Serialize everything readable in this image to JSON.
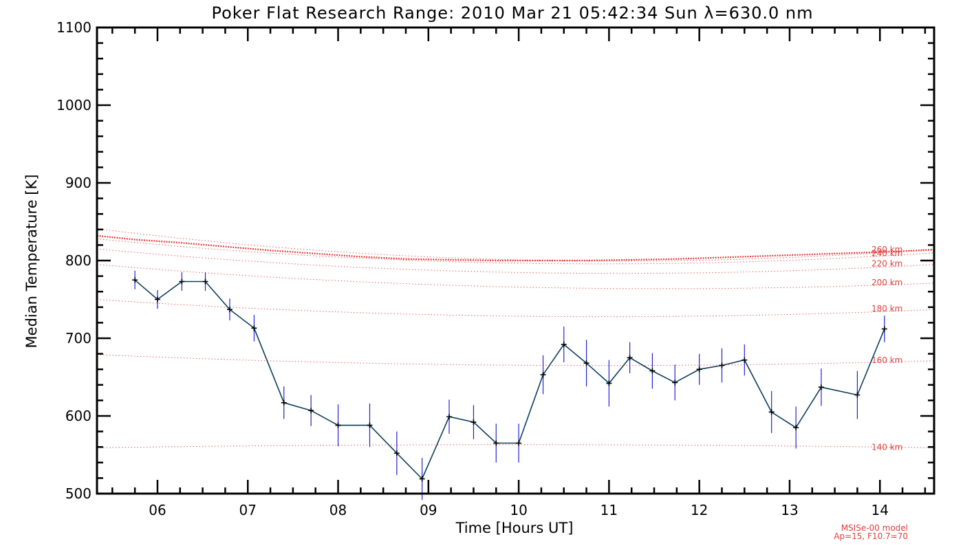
{
  "chart_data": {
    "type": "line",
    "title": "Poker Flat Research Range: 2010 Mar 21 05:42:34 Sun λ=630.0 nm",
    "xlabel": "Time [Hours UT]",
    "ylabel": "Median Temperature [K]",
    "xlim": [
      5.33,
      14.6
    ],
    "ylim": [
      500,
      1100
    ],
    "x_tick_labels": [
      "06",
      "07",
      "08",
      "09",
      "10",
      "11",
      "12",
      "13",
      "14"
    ],
    "y_tick_labels": [
      "500",
      "600",
      "700",
      "800",
      "900",
      "1000",
      "1100"
    ],
    "grid": false,
    "series": [
      {
        "kind": "measured",
        "color": "#0b3d5c",
        "error_color": "#1f1fd6",
        "x": [
          5.75,
          6.0,
          6.27,
          6.53,
          6.8,
          7.07,
          7.4,
          7.7,
          8.0,
          8.35,
          8.65,
          8.93,
          9.23,
          9.5,
          9.75,
          10.0,
          10.27,
          10.5,
          10.75,
          11.0,
          11.23,
          11.48,
          11.73,
          12.0,
          12.25,
          12.5,
          12.8,
          13.07,
          13.35,
          13.75,
          14.05
        ],
        "y": [
          775,
          750,
          773,
          773,
          737,
          713,
          617,
          607,
          588,
          588,
          552,
          519,
          599,
          592,
          565,
          565,
          653,
          692,
          668,
          642,
          675,
          658,
          643,
          660,
          665,
          672,
          605,
          585,
          637,
          627,
          712
        ],
        "err": [
          12,
          12,
          12,
          12,
          14,
          17,
          21,
          20,
          27,
          28,
          28,
          27,
          22,
          22,
          25,
          25,
          25,
          23,
          30,
          30,
          20,
          23,
          23,
          20,
          22,
          20,
          27,
          27,
          24,
          31,
          17
        ]
      },
      {
        "name": "MSISe-00 model",
        "kind": "model",
        "color": "#e03c3c",
        "x": [
          5.33,
          5.75,
          6.25,
          6.75,
          7.25,
          7.75,
          8.25,
          8.75,
          9.25,
          9.75,
          10.25,
          10.75,
          11.25,
          11.75,
          12.25,
          12.75,
          13.25,
          13.75,
          14.25,
          14.6
        ],
        "y": [
          832,
          827,
          823,
          818,
          813,
          809,
          805,
          802,
          801,
          800,
          800,
          800,
          801,
          802,
          804,
          806,
          808,
          810,
          812,
          814
        ]
      }
    ],
    "altitude_curves": [
      {
        "label": "260 km",
        "start": 841,
        "end": 815,
        "mid": 800
      },
      {
        "label": "240 km",
        "start": 828,
        "end": 810,
        "mid": 796
      },
      {
        "label": "220 km",
        "start": 815,
        "end": 795,
        "mid": 784
      },
      {
        "label": "200 km",
        "start": 795,
        "end": 771,
        "mid": 765
      },
      {
        "label": "180 km",
        "start": 750,
        "end": 737,
        "mid": 728
      },
      {
        "label": "160 km",
        "start": 679,
        "end": 671,
        "mid": 665
      },
      {
        "label": "140 km",
        "start": 559,
        "end": 559,
        "mid": 563
      }
    ],
    "model_note": [
      "MSISe-00 model",
      "Ap=15, F10.7=70"
    ]
  }
}
